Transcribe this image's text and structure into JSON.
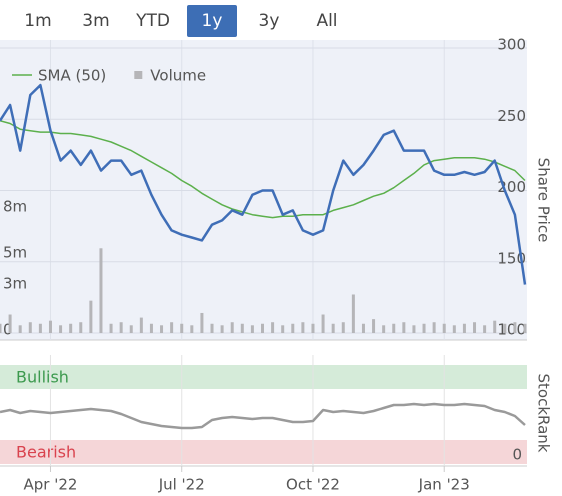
{
  "range_buttons": [
    {
      "label": "1m",
      "selected": false
    },
    {
      "label": "3m",
      "selected": false
    },
    {
      "label": "YTD",
      "selected": false
    },
    {
      "label": "1y",
      "selected": true
    },
    {
      "label": "3y",
      "selected": false
    },
    {
      "label": "All",
      "selected": false
    }
  ],
  "chart_data": [
    {
      "type": "line",
      "y_label": "Share Price",
      "categories": [
        null,
        null,
        null,
        null,
        null,
        "Apr '22",
        null,
        null,
        null,
        null,
        null,
        null,
        null,
        null,
        null,
        null,
        null,
        null,
        "Jul '22",
        null,
        null,
        null,
        null,
        null,
        null,
        null,
        null,
        null,
        null,
        null,
        null,
        "Oct '22",
        null,
        null,
        null,
        null,
        null,
        null,
        null,
        null,
        null,
        null,
        null,
        null,
        "Jan '23",
        null,
        null,
        null,
        null,
        null,
        null,
        null,
        null
      ],
      "series": [
        {
          "color": "#3f6eb7",
          "values": [
            249,
            260,
            228,
            267,
            274,
            242,
            221,
            228,
            218,
            228,
            214,
            221,
            221,
            211,
            214,
            197,
            183,
            172,
            169,
            167,
            165,
            176,
            179,
            186,
            183,
            197,
            200,
            200,
            183,
            186,
            172,
            169,
            172,
            200,
            221,
            211,
            218,
            228,
            239,
            242,
            228,
            228,
            228,
            214,
            211,
            211,
            213,
            211,
            213,
            221,
            200,
            183,
            134
          ]
        },
        {
          "name": "SMA (50)",
          "color": "#5cb04c",
          "values": [
            249,
            247,
            243,
            242,
            241,
            241,
            240,
            240,
            239,
            238,
            236,
            234,
            231,
            228,
            224,
            220,
            216,
            212,
            207,
            203,
            198,
            194,
            190,
            187,
            185,
            183,
            182,
            181,
            182,
            182,
            183,
            183,
            183,
            186,
            188,
            190,
            193,
            196,
            198,
            202,
            207,
            212,
            218,
            221,
            222,
            223,
            223,
            223,
            222,
            220,
            217,
            214,
            207
          ]
        },
        {
          "name": "Volume",
          "type": "bar",
          "axis": "y2",
          "color": "#b5b5b8",
          "values": [
            0.6,
            1.2,
            0.5,
            0.7,
            0.6,
            0.8,
            0.5,
            0.6,
            0.7,
            2.1,
            5.5,
            0.6,
            0.7,
            0.5,
            1.0,
            0.6,
            0.5,
            0.7,
            0.6,
            0.5,
            1.3,
            0.6,
            0.5,
            0.7,
            0.6,
            0.5,
            0.6,
            0.7,
            0.5,
            0.6,
            0.7,
            0.6,
            1.2,
            0.6,
            0.7,
            2.5,
            0.6,
            0.9,
            0.5,
            0.6,
            0.7,
            0.5,
            0.6,
            0.7,
            0.6,
            0.5,
            0.6,
            0.7,
            0.5,
            0.8,
            0.6,
            0.7,
            0.6
          ]
        }
      ],
      "ylim": [
        100,
        300
      ],
      "yticks": [
        100,
        150,
        200,
        250,
        300
      ],
      "y2lim": [
        0,
        18.5
      ],
      "y2ticks": [
        0,
        {
          "value": 3,
          "label": "3m"
        },
        {
          "value": 5,
          "label": "5m"
        },
        {
          "value": 8,
          "label": "8m"
        }
      ],
      "grid": true
    },
    {
      "type": "line",
      "y_label": "StockRank",
      "bands": [
        {
          "label": "Bullish",
          "color": "#d5ebd9",
          "text_color": "#3d9a4f"
        },
        {
          "label": "Bearish",
          "color": "#f5d6d8",
          "text_color": "#d9434e"
        }
      ],
      "series": [
        {
          "color": "#9a9a9a",
          "values": [
            50,
            52,
            49,
            51,
            50,
            49,
            50,
            51,
            52,
            53,
            52,
            51,
            48,
            44,
            40,
            38,
            36,
            35,
            34,
            34,
            35,
            42,
            44,
            45,
            44,
            43,
            44,
            44,
            42,
            40,
            40,
            41,
            52,
            50,
            51,
            50,
            49,
            51,
            54,
            57,
            57,
            58,
            57,
            58,
            57,
            57,
            58,
            57,
            56,
            52,
            50,
            46,
            37
          ]
        }
      ],
      "ylim": [
        0,
        100
      ],
      "yticks": [
        0
      ]
    }
  ]
}
